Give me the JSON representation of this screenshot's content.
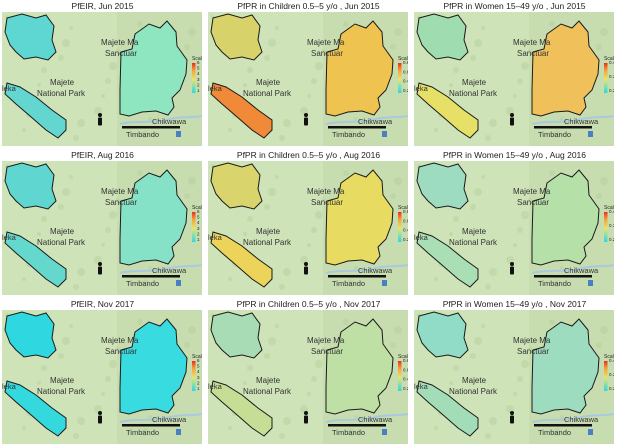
{
  "panels": [
    {
      "title": "PfEIR,  Jun 2015",
      "ticks": [
        "1",
        "2",
        "3",
        "4",
        "5",
        "6"
      ],
      "fills": {
        "north": "#5ed6d2",
        "southwest": "#62d6cf",
        "east": "#8ee6c0"
      }
    },
    {
      "title": "PfPR in Children 0.5–5 y/o ,  Jun 2015",
      "ticks": [
        "0.2",
        "0.4",
        "0.6",
        "0.8"
      ],
      "fills": {
        "north": "#d7d36a",
        "southwest": "#f08a38",
        "east": "#eec34f"
      }
    },
    {
      "title": "PfPR in Women 15–49 y/o ,  Jun 2015",
      "ticks": [
        "0.2",
        "0.3",
        "0.4"
      ],
      "fills": {
        "north": "#9fdcb0",
        "southwest": "#e6e066",
        "east": "#f0c05a"
      }
    },
    {
      "title": "PfEIR,  Aug 2016",
      "ticks": [
        "1",
        "2",
        "3",
        "4",
        "5",
        "6"
      ],
      "fills": {
        "north": "#5fd7d0",
        "southwest": "#64d8cc",
        "east": "#86e2c6"
      }
    },
    {
      "title": "PfPR in Children 0.5–5 y/o ,  Aug 2016",
      "ticks": [
        "0.2",
        "0.4",
        "0.6",
        "0.8"
      ],
      "fills": {
        "north": "#d9d56c",
        "southwest": "#ecd35a",
        "east": "#e8db62"
      }
    },
    {
      "title": "PfPR in Women 15–49 y/o ,  Aug 2016",
      "ticks": [
        "0.2",
        "0.3",
        "0.4"
      ],
      "fills": {
        "north": "#9ddcc0",
        "southwest": "#aadfb5",
        "east": "#b5e0a8"
      }
    },
    {
      "title": "PfEIR,  Nov 2017",
      "ticks": [
        "1",
        "2",
        "3",
        "4",
        "5",
        "6"
      ],
      "fills": {
        "north": "#2fd8e0",
        "southwest": "#34d9de",
        "east": "#38dbe0"
      }
    },
    {
      "title": "PfPR in Children 0.5–5 y/o ,  Nov 2017",
      "ticks": [
        "0.2",
        "0.4",
        "0.6",
        "0.8"
      ],
      "fills": {
        "north": "#a8dcb5",
        "southwest": "#c6dd96",
        "east": "#bfe0a4"
      }
    },
    {
      "title": "PfPR in Women 15–49 y/o ,  Nov 2017",
      "ticks": [
        "0.2",
        "0.3",
        "0.4"
      ],
      "fills": {
        "north": "#90dcc6",
        "southwest": "#a3ddb8",
        "east": "#9edcc0"
      }
    }
  ],
  "map_labels": {
    "sanctuary_line1": "Majete Ma",
    "sanctuary_line2": "Sanctuar",
    "park_line1": "Majete",
    "park_line2": "National Park",
    "left_edge": "leka",
    "chikwawa": "Chikwawa",
    "timbando": "Timbando",
    "scale_title": "Scale"
  },
  "colors": {
    "basemap": "#c7ddb0",
    "basemap_light": "#d2e5bc",
    "boundary": "#1a1a1a",
    "river": "#a9c9de"
  }
}
